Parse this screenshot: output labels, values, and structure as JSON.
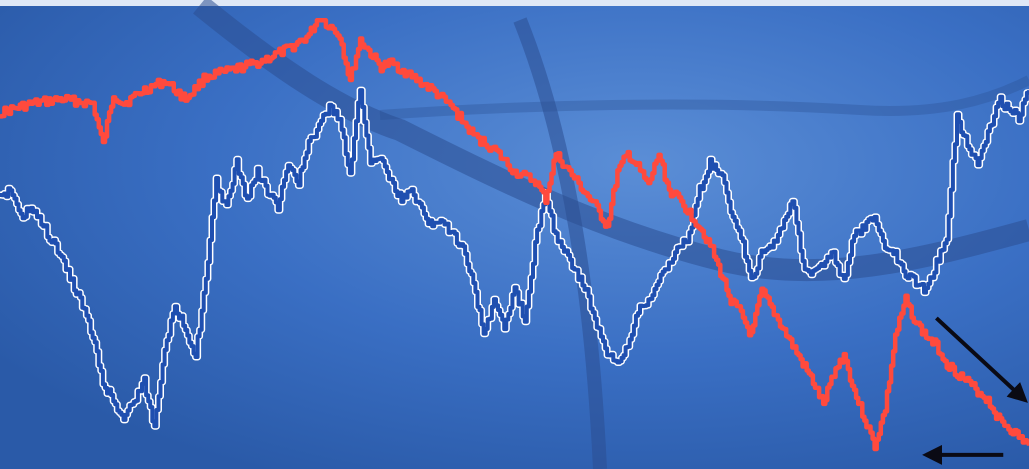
{
  "colors": {
    "background": "#3a6fc4",
    "background_light": "#5b8ed6",
    "background_dark": "#2a5aa8",
    "swirl": "#2b4f92",
    "series_red": "#ff4a3d",
    "series_blue": "#1f4fb0",
    "series_blue_outline": "#ffffff",
    "arrow": "#0a0a14",
    "top_band": "#dfe8f6"
  },
  "chart_data": {
    "type": "line",
    "title": "",
    "xlabel": "",
    "ylabel": "",
    "grid": false,
    "legend": "none",
    "axes_shown": false,
    "xlim": [
      0,
      100
    ],
    "ylim": [
      0,
      100
    ],
    "series": [
      {
        "color": "#ff4a3d",
        "outline": "none",
        "x": [
          0,
          3,
          6,
          9,
          10,
          11,
          12,
          14,
          16,
          18,
          20,
          22,
          25,
          28,
          30,
          31,
          33,
          34,
          35,
          36,
          37,
          38,
          40,
          42,
          44,
          46,
          48,
          50,
          52,
          53,
          54,
          56,
          58,
          59,
          60,
          61,
          62,
          63,
          64,
          65,
          66,
          67,
          68,
          69,
          70,
          71,
          72,
          73,
          74,
          75,
          76,
          77,
          78,
          79,
          80,
          81,
          82,
          83,
          84,
          85,
          86,
          87,
          88,
          89,
          90,
          91,
          92,
          93,
          94,
          95,
          96,
          97,
          98,
          99,
          100
        ],
        "y": [
          77,
          79,
          80,
          79,
          70,
          81,
          79,
          82,
          84,
          80,
          85,
          86,
          88,
          91,
          94,
          98,
          94,
          84,
          93,
          90,
          87,
          88,
          85,
          82,
          78,
          72,
          69,
          64,
          62,
          58,
          68,
          62,
          56,
          52,
          64,
          68,
          65,
          61,
          68,
          60,
          58,
          55,
          52,
          48,
          42,
          36,
          33,
          28,
          38,
          34,
          30,
          26,
          22,
          18,
          13,
          20,
          24,
          16,
          10,
          4,
          12,
          28,
          36,
          31,
          28,
          26,
          22,
          20,
          18,
          16,
          14,
          10,
          8,
          6,
          4
        ]
      },
      {
        "color": "#1f4fb0",
        "outline": "#ffffff",
        "x": [
          0,
          1,
          2,
          3,
          4,
          5,
          6,
          7,
          8,
          9,
          10,
          11,
          12,
          13,
          14,
          15,
          16,
          17,
          18,
          19,
          20,
          21,
          22,
          23,
          24,
          25,
          26,
          27,
          28,
          29,
          30,
          31,
          32,
          33,
          34,
          35,
          36,
          37,
          38,
          39,
          40,
          41,
          42,
          43,
          44,
          45,
          46,
          47,
          48,
          49,
          50,
          51,
          52,
          53,
          54,
          55,
          56,
          57,
          58,
          59,
          60,
          61,
          62,
          63,
          64,
          65,
          66,
          67,
          68,
          69,
          70,
          71,
          72,
          73,
          74,
          75,
          76,
          77,
          78,
          79,
          80,
          81,
          82,
          83,
          84,
          85,
          86,
          87,
          88,
          89,
          90,
          91,
          92,
          93,
          94,
          95,
          96,
          97,
          98,
          99,
          100
        ],
        "y": [
          58,
          60,
          54,
          56,
          53,
          49,
          45,
          40,
          35,
          28,
          18,
          14,
          10,
          14,
          18,
          8,
          26,
          34,
          30,
          24,
          40,
          62,
          56,
          66,
          58,
          64,
          60,
          56,
          66,
          62,
          70,
          74,
          78,
          76,
          64,
          82,
          66,
          68,
          62,
          58,
          60,
          56,
          52,
          54,
          50,
          48,
          40,
          28,
          36,
          30,
          38,
          32,
          48,
          60,
          50,
          46,
          42,
          38,
          30,
          24,
          22,
          26,
          34,
          36,
          40,
          44,
          48,
          50,
          60,
          66,
          64,
          56,
          50,
          40,
          46,
          48,
          52,
          58,
          44,
          42,
          44,
          46,
          40,
          50,
          52,
          54,
          48,
          46,
          42,
          40,
          38,
          44,
          50,
          76,
          70,
          66,
          72,
          80,
          78,
          76,
          82
        ]
      }
    ],
    "annotations": [
      {
        "type": "arrow",
        "from": [
          91,
          32
        ],
        "to": [
          100,
          14
        ]
      },
      {
        "type": "arrow",
        "from": [
          97.5,
          2
        ],
        "to": [
          90,
          2
        ]
      }
    ]
  }
}
